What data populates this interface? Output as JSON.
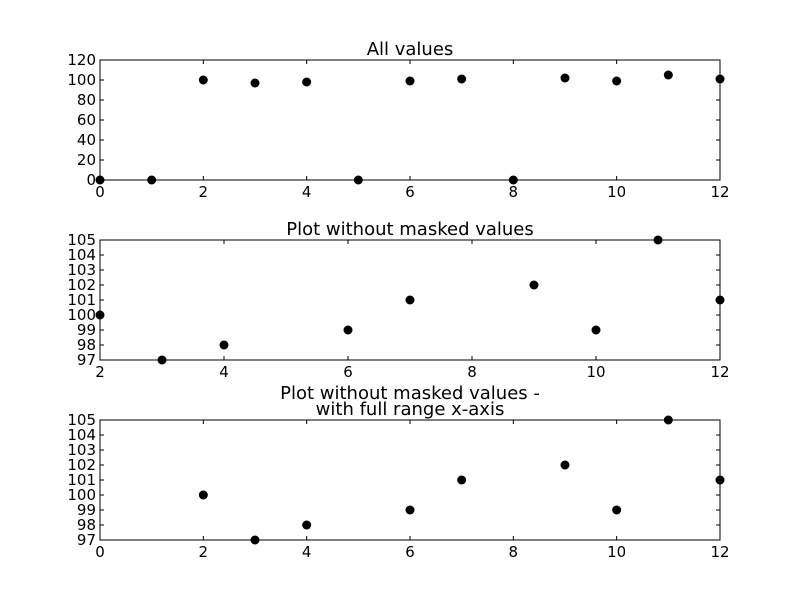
{
  "chart_data": [
    {
      "type": "scatter",
      "title": [
        "All values"
      ],
      "xlim": [
        0,
        12
      ],
      "ylim": [
        0,
        120
      ],
      "xticks": [
        "0",
        "2",
        "4",
        "6",
        "8",
        "10",
        "12"
      ],
      "yticks": [
        "0",
        "20",
        "40",
        "60",
        "80",
        "100",
        "120"
      ],
      "x": [
        0,
        1,
        2,
        3,
        4,
        5,
        6,
        7,
        8,
        9,
        10,
        11,
        12
      ],
      "y": [
        0,
        0,
        100,
        97,
        98,
        0,
        99,
        101,
        0,
        102,
        99,
        105,
        101
      ]
    },
    {
      "type": "scatter",
      "title": [
        "Plot without masked values"
      ],
      "xlim": [
        2,
        12
      ],
      "ylim": [
        97,
        105
      ],
      "xticks": [
        "2",
        "4",
        "6",
        "8",
        "10",
        "12"
      ],
      "yticks": [
        "97",
        "98",
        "99",
        "100",
        "101",
        "102",
        "103",
        "104",
        "105"
      ],
      "x": [
        2,
        3,
        4,
        6,
        7,
        9,
        10,
        11,
        12
      ],
      "y": [
        100,
        97,
        98,
        99,
        101,
        102,
        99,
        105,
        101
      ]
    },
    {
      "type": "scatter",
      "title": [
        "Plot without masked values -",
        "with full range x-axis"
      ],
      "xlim": [
        0,
        12
      ],
      "ylim": [
        97,
        105
      ],
      "xticks": [
        "0",
        "2",
        "4",
        "6",
        "8",
        "10",
        "12"
      ],
      "yticks": [
        "97",
        "98",
        "99",
        "100",
        "101",
        "102",
        "103",
        "104",
        "105"
      ],
      "x": [
        2,
        3,
        4,
        6,
        7,
        9,
        10,
        11,
        12
      ],
      "y": [
        100,
        97,
        98,
        99,
        101,
        102,
        99,
        105,
        101
      ]
    }
  ]
}
